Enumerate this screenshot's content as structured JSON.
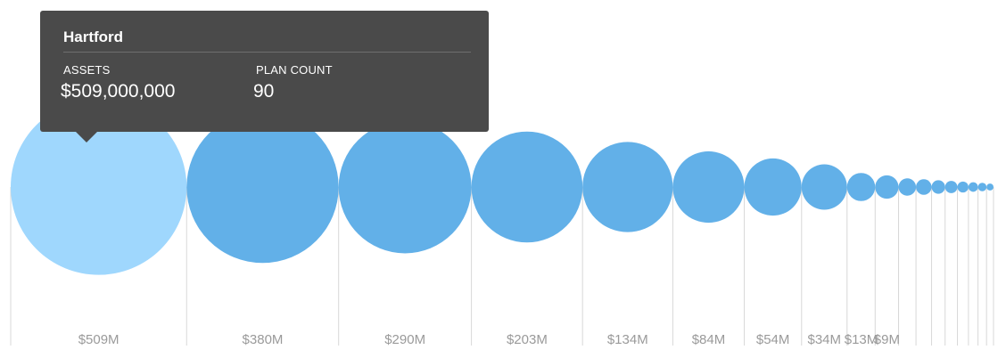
{
  "tooltip": {
    "title": "Hartford",
    "assets_label": "ASSETS",
    "assets_value": "$509,000,000",
    "plan_count_label": "PLAN COUNT",
    "plan_count_value": "90"
  },
  "colors": {
    "bubble": "#62b0e8",
    "bubble_active": "#9fd7fd",
    "tooltip_bg": "#4a4a4a",
    "axis_text": "#9a9a9a",
    "divider": "#d8d8d8"
  },
  "chart_data": {
    "type": "bubble",
    "title": "",
    "highlighted_index": 0,
    "categories": [
      "$509M",
      "$380M",
      "$290M",
      "$203M",
      "$134M",
      "$84M",
      "$54M",
      "$34M",
      "$13M",
      "$9M",
      "",
      "",
      "",
      "",
      "",
      "",
      "",
      ""
    ],
    "values": [
      509,
      380,
      290,
      203,
      134,
      84,
      54,
      34,
      13,
      9,
      5,
      4,
      3,
      2.5,
      2,
      1.5,
      1.2,
      0.8
    ],
    "value_unit": "$M",
    "grid": false,
    "legend": "none"
  }
}
